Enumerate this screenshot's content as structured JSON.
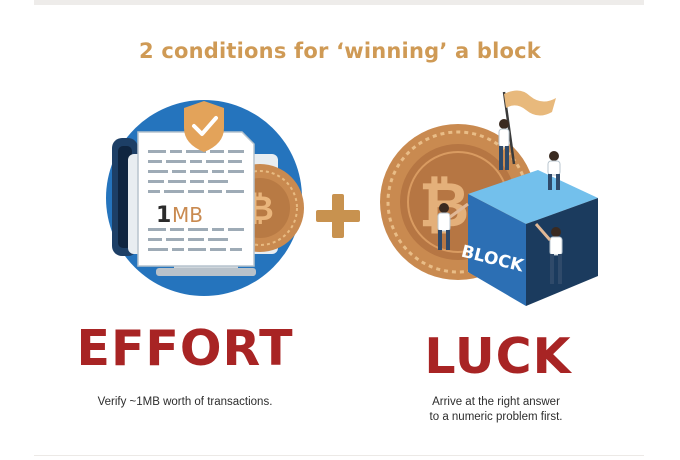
{
  "title": "2 conditions for ‘winning’ a block",
  "effort": {
    "heading": "EFFORT",
    "caption": "Verify ~1MB worth of transactions.",
    "doc_number": "1",
    "doc_unit": "MB"
  },
  "plus_symbol": "+",
  "luck": {
    "heading": "LUCK",
    "caption_line1": "Arrive at the right answer",
    "caption_line2": "to a numeric problem first.",
    "block_label": "BLOCK"
  },
  "colors": {
    "title": "#cf9a55",
    "heading": "#a82424",
    "blue_circle": "#2574bd",
    "coin": "#c98a50",
    "cube_top": "#73c0ec",
    "cube_front": "#2c6fb4",
    "plus": "#c8924f"
  }
}
